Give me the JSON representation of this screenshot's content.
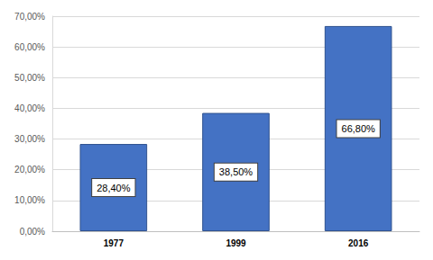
{
  "chart_data": {
    "type": "bar",
    "categories": [
      "1977",
      "1999",
      "2016"
    ],
    "values": [
      28.4,
      38.5,
      66.8
    ],
    "value_labels": [
      "28,40%",
      "38,50%",
      "66,80%"
    ],
    "color": "#4472c4",
    "ylim": [
      0,
      70
    ],
    "yticks": [
      {
        "value": 0,
        "label": "0,00%"
      },
      {
        "value": 10,
        "label": "10,00%"
      },
      {
        "value": 20,
        "label": "20,00%"
      },
      {
        "value": 30,
        "label": "30,00%"
      },
      {
        "value": 40,
        "label": "40,00%"
      },
      {
        "value": 50,
        "label": "50,00%"
      },
      {
        "value": 60,
        "label": "60,00%"
      },
      {
        "value": 70,
        "label": "70,00%"
      }
    ],
    "grid": true,
    "data_labels": true
  }
}
